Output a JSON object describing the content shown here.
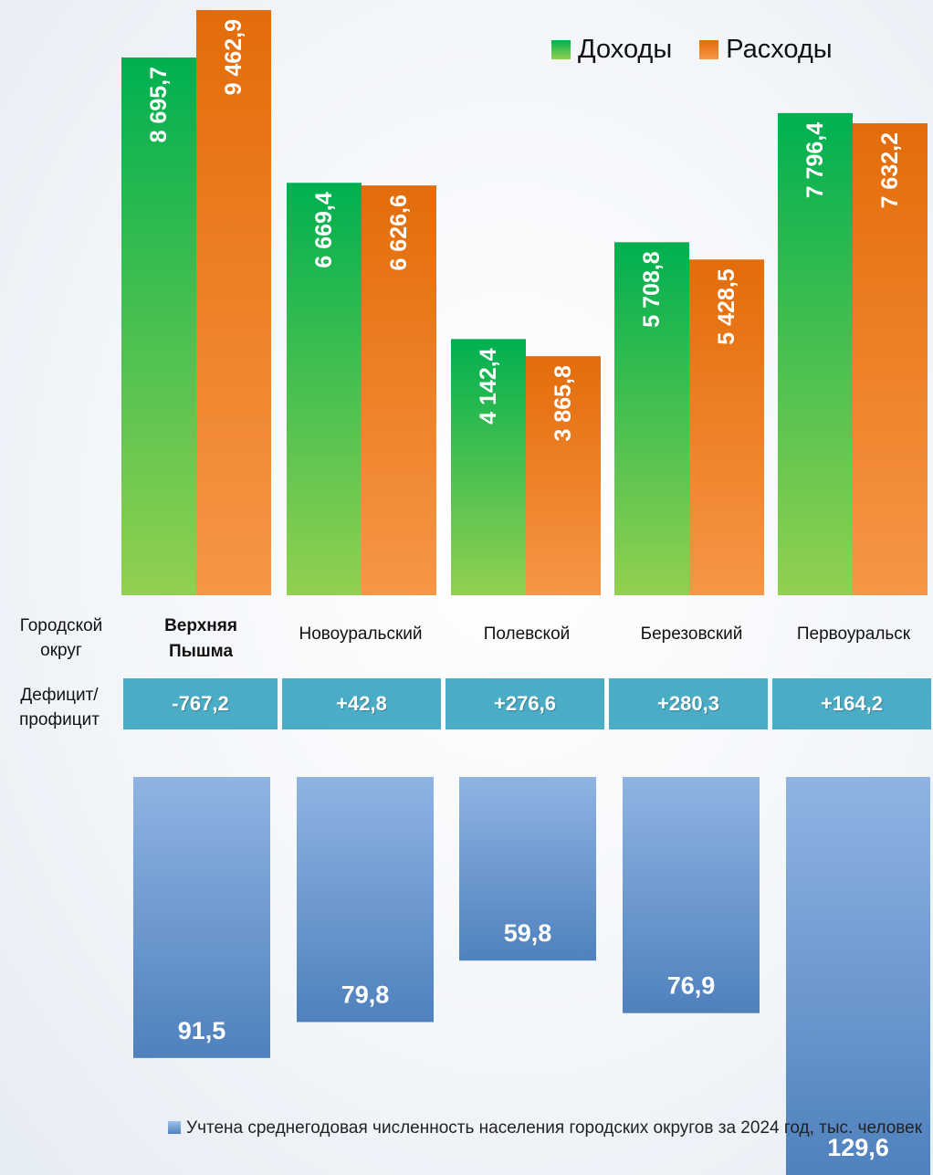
{
  "chart_data": [
    {
      "type": "bar",
      "categories": [
        "Верхняя Пышма",
        "Новоуральский",
        "Полевской",
        "Березовский",
        "Первоуральск"
      ],
      "series": [
        {
          "name": "Доходы",
          "values": [
            8695.7,
            6669.4,
            4142.4,
            5708.8,
            7796.4
          ],
          "labels": [
            "8 695,7",
            "6 669,4",
            "4 142,4",
            "5 708,8",
            "7 796,4"
          ],
          "color": "#00b050"
        },
        {
          "name": "Расходы",
          "values": [
            9462.9,
            6626.6,
            3865.8,
            5428.5,
            7632.2
          ],
          "labels": [
            "9 462,9",
            "6 626,6",
            "3 865,8",
            "5 428,5",
            "7 632,2"
          ],
          "color": "#e36c0a"
        }
      ],
      "legend": "top-right"
    },
    {
      "type": "bar",
      "orientation": "downward",
      "categories": [
        "Верхняя Пышма",
        "Новоуральский",
        "Полевской",
        "Березовский",
        "Первоуральск"
      ],
      "values": [
        91.5,
        79.8,
        59.8,
        76.9,
        129.6
      ],
      "labels": [
        "91,5",
        "79,8",
        "59,8",
        "76,9",
        "129,6"
      ],
      "color": "#4f81bd"
    }
  ],
  "row_labels": {
    "okrug": "Городской округ",
    "deficit": "Дефицит/ профицит"
  },
  "categories": [
    {
      "name": "Верхняя Пышма",
      "bold": true
    },
    {
      "name": "Новоуральский",
      "bold": false
    },
    {
      "name": "Полевской",
      "bold": false
    },
    {
      "name": "Березовский",
      "bold": false
    },
    {
      "name": "Первоуральск",
      "bold": false
    }
  ],
  "deficit": [
    "-767,2",
    "+42,8",
    "+276,6",
    "+280,3",
    "+164,2"
  ],
  "legend": {
    "income": "Доходы",
    "expense": "Расходы"
  },
  "footnote": "Учтена среднегодовая численность населения городских округов за 2024 год, тыс. человек"
}
